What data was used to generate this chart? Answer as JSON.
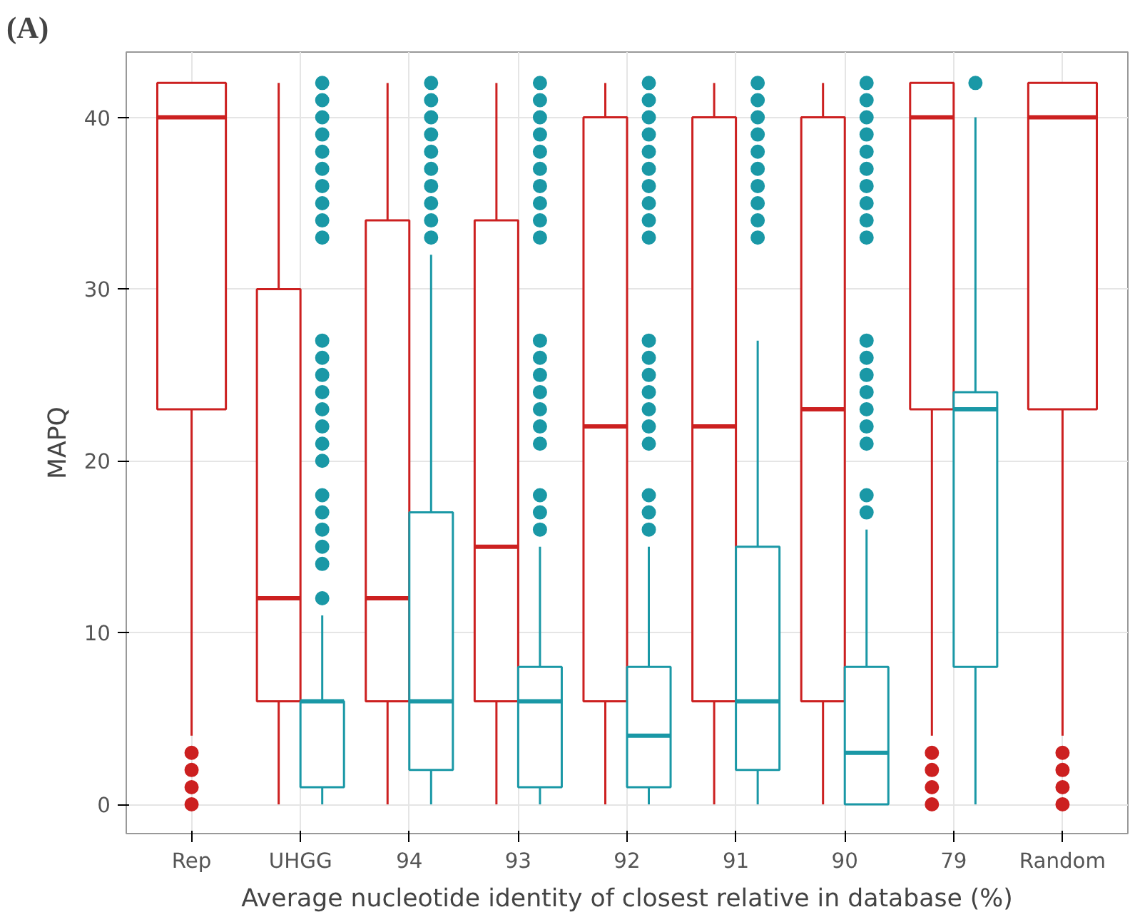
{
  "chart_data": {
    "type": "box",
    "categories": [
      "Rep",
      "UHGG",
      "94",
      "93",
      "92",
      "91",
      "90",
      "79",
      "Random"
    ],
    "xlabel": "Average nucleotide identity of closest relative in database (%)",
    "ylabel": "MAPQ",
    "ylim": [
      -1.7,
      43.8
    ],
    "yticks": [
      0,
      10,
      20,
      30,
      40
    ],
    "grid": true,
    "annotations": [
      "(A)"
    ],
    "series": [
      {
        "color": "#cc2020",
        "boxes": [
          {
            "low": 4,
            "q1": 23,
            "median": 40,
            "q3": 42,
            "high": 42,
            "outliers": [
              0,
              1,
              2,
              3
            ]
          },
          {
            "low": 0,
            "q1": 6,
            "median": 12,
            "q3": 30,
            "high": 42
          },
          {
            "low": 0,
            "q1": 6,
            "median": 12,
            "q3": 34,
            "high": 42
          },
          {
            "low": 0,
            "q1": 6,
            "median": 15,
            "q3": 34,
            "high": 42
          },
          {
            "low": 0,
            "q1": 6,
            "median": 22,
            "q3": 40,
            "high": 42
          },
          {
            "low": 0,
            "q1": 6,
            "median": 22,
            "q3": 40,
            "high": 42
          },
          {
            "low": 0,
            "q1": 6,
            "median": 23,
            "q3": 40,
            "high": 42
          },
          {
            "low": 4,
            "q1": 23,
            "median": 40,
            "q3": 42,
            "high": 42,
            "outliers": [
              0,
              1,
              2,
              3
            ]
          },
          {
            "low": 4,
            "q1": 23,
            "median": 40,
            "q3": 42,
            "high": 42,
            "outliers": [
              0,
              1,
              2,
              3
            ]
          }
        ]
      },
      {
        "color": "#1a98a6",
        "boxes": [
          null,
          {
            "low": 0,
            "q1": 1,
            "median": 6,
            "q3": 6,
            "high": 11,
            "outliers": [
              12,
              14,
              15,
              16,
              17,
              18,
              20,
              21,
              22,
              23,
              24,
              25,
              26,
              27,
              33,
              34,
              35,
              36,
              37,
              38,
              39,
              40,
              41,
              42
            ]
          },
          {
            "low": 0,
            "q1": 2,
            "median": 6,
            "q3": 17,
            "high": 32,
            "outliers": [
              33,
              34,
              35,
              36,
              37,
              38,
              39,
              40,
              41,
              42
            ]
          },
          {
            "low": 0,
            "q1": 1,
            "median": 6,
            "q3": 8,
            "high": 15,
            "outliers": [
              16,
              17,
              18,
              21,
              22,
              23,
              24,
              25,
              26,
              27,
              33,
              34,
              35,
              36,
              37,
              38,
              39,
              40,
              41,
              42
            ]
          },
          {
            "low": 0,
            "q1": 1,
            "median": 4,
            "q3": 8,
            "high": 15,
            "outliers": [
              16,
              17,
              18,
              21,
              22,
              23,
              24,
              25,
              26,
              27,
              33,
              34,
              35,
              36,
              37,
              38,
              39,
              40,
              41,
              42
            ]
          },
          {
            "low": 0,
            "q1": 2,
            "median": 6,
            "q3": 15,
            "high": 27,
            "outliers": [
              33,
              34,
              35,
              36,
              37,
              38,
              39,
              40,
              41,
              42
            ]
          },
          {
            "low": 0,
            "q1": 0,
            "median": 3,
            "q3": 8,
            "high": 16,
            "outliers": [
              17,
              18,
              21,
              22,
              23,
              24,
              25,
              26,
              27,
              33,
              34,
              35,
              36,
              37,
              38,
              39,
              40,
              41,
              42
            ]
          },
          {
            "low": 0,
            "q1": 8,
            "median": 23,
            "q3": 24,
            "high": 40,
            "outliers": [
              42
            ]
          },
          null
        ]
      }
    ]
  }
}
